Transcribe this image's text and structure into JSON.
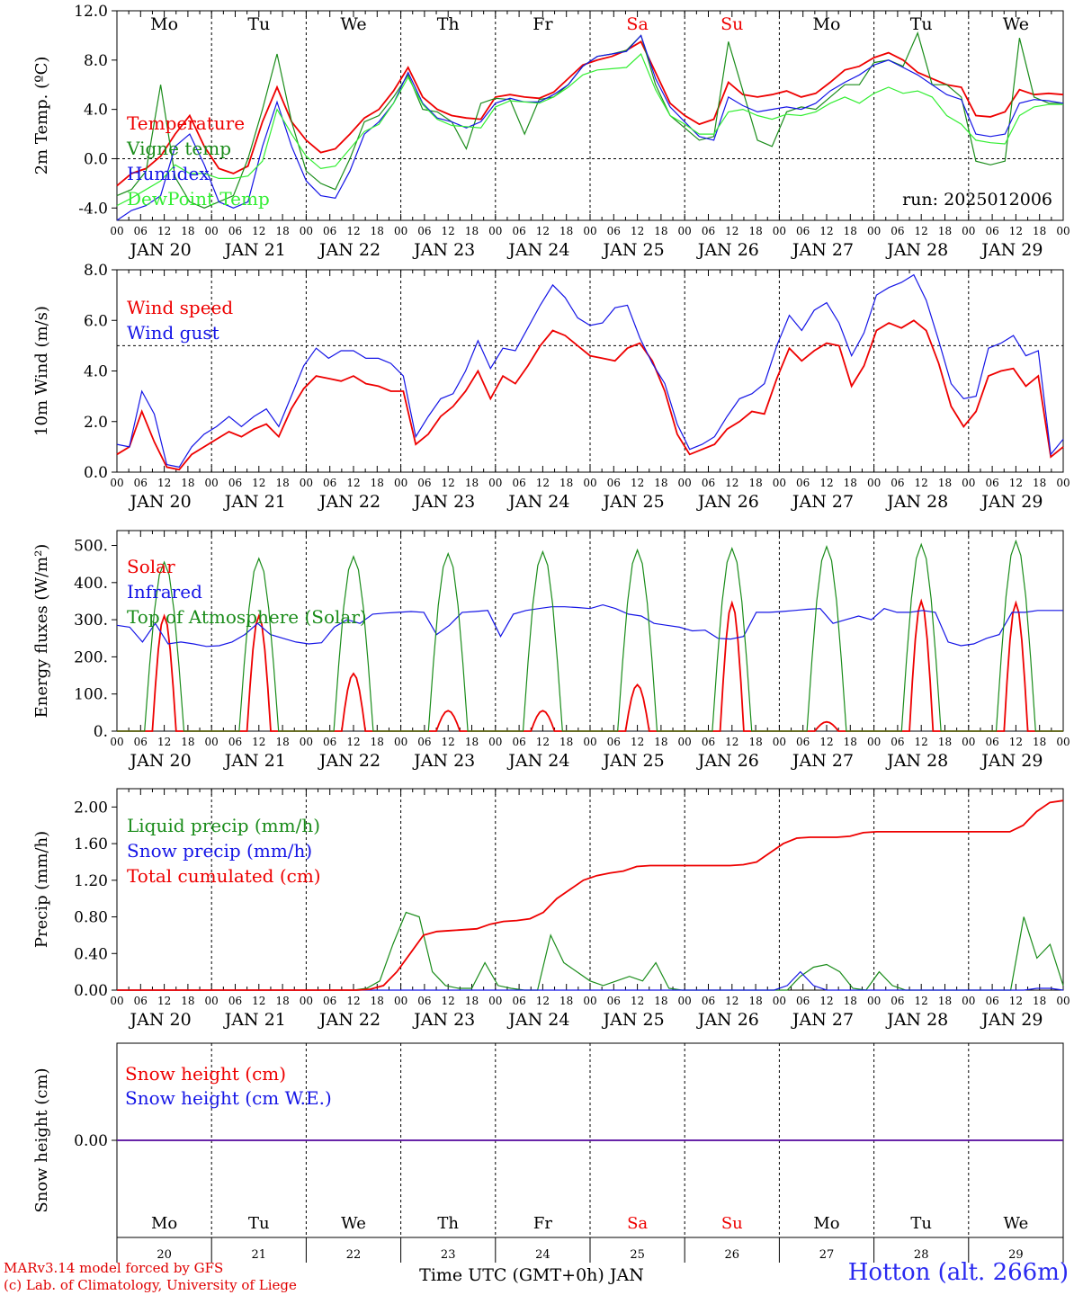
{
  "time_axis": {
    "days": [
      "JAN 20",
      "JAN 21",
      "JAN 22",
      "JAN 23",
      "JAN 24",
      "JAN 25",
      "JAN 26",
      "JAN 27",
      "JAN 28",
      "JAN 29"
    ],
    "hour_labels": [
      "00",
      "06",
      "12",
      "18"
    ],
    "weekdays": [
      "Mo",
      "Tu",
      "We",
      "Th",
      "Fr",
      "Sa",
      "Su",
      "Mo",
      "Tu",
      "We"
    ],
    "weekend_index": [
      5,
      6
    ],
    "day_numbers": [
      "20",
      "21",
      "22",
      "23",
      "24",
      "25",
      "26",
      "27",
      "28",
      "29"
    ],
    "month": "JAN",
    "xlabel": "Time UTC (GMT+0h)"
  },
  "colors": {
    "red": "#ee0000",
    "green": "#1a8c1a",
    "blue": "#1515e6",
    "light_green": "#33ee33",
    "axis": "#000000"
  },
  "footer": {
    "credit_line1": "MARv3.14 model forced by GFS",
    "credit_line2": "(c) Lab. of Climatology, University of Liege",
    "station": "Hotton (alt. 266m)"
  },
  "chart_data": [
    {
      "type": "line",
      "ylabel": "2m Temp. (ºC)",
      "ylim": [
        -5,
        12
      ],
      "yticks": [
        "-4.0",
        "0.0",
        "4.0",
        "8.0",
        "12.0"
      ],
      "ytick_values": [
        -4,
        0,
        4,
        8,
        12
      ],
      "ref_line": 0,
      "annotation": "run: 2025012006",
      "series": [
        {
          "name": "Temperature",
          "color": "red",
          "values": [
            -2.2,
            -1.2,
            -0.8,
            0.2,
            2.0,
            3.5,
            1.0,
            -0.8,
            -1.2,
            -0.6,
            3.0,
            5.8,
            3.0,
            1.5,
            0.5,
            0.8,
            2.0,
            3.3,
            4.0,
            5.5,
            7.4,
            5.0,
            4.0,
            3.5,
            3.3,
            3.2,
            5.0,
            5.2,
            5.0,
            4.9,
            5.4,
            6.5,
            7.6,
            8.0,
            8.3,
            8.8,
            9.5,
            7.0,
            4.5,
            3.5,
            2.8,
            3.2,
            6.2,
            5.2,
            5.0,
            5.2,
            5.5,
            5.0,
            5.3,
            6.2,
            7.2,
            7.5,
            8.2,
            8.6,
            8.0,
            7.0,
            6.5,
            6.0,
            5.8,
            3.5,
            3.4,
            3.8,
            5.6,
            5.2,
            5.3,
            5.2
          ]
        },
        {
          "name": "Vigne temp",
          "color": "green",
          "values": [
            -3.0,
            -2.5,
            -1.0,
            6.0,
            -1.5,
            -3.5,
            -4.0,
            -3.5,
            -3.0,
            0.0,
            4.0,
            8.5,
            3.0,
            -1.0,
            -2.0,
            -2.5,
            0.0,
            3.0,
            3.5,
            5.0,
            6.8,
            4.0,
            3.8,
            3.0,
            0.8,
            4.5,
            4.9,
            4.8,
            2.0,
            4.8,
            5.0,
            6.0,
            7.5,
            8.3,
            8.5,
            8.8,
            10.0,
            6.0,
            3.5,
            2.5,
            1.5,
            1.8,
            9.5,
            5.5,
            1.5,
            1.0,
            3.8,
            4.2,
            4.0,
            5.0,
            6.0,
            6.0,
            7.8,
            8.0,
            7.5,
            10.2,
            6.0,
            6.0,
            5.0,
            -0.2,
            -0.5,
            -0.2,
            9.8,
            5.0,
            4.5,
            4.5
          ]
        },
        {
          "name": "Humidex",
          "color": "blue",
          "values": [
            -5.0,
            -4.2,
            -3.8,
            -3.0,
            1.0,
            2.0,
            -0.5,
            -3.5,
            -4.0,
            -3.5,
            1.0,
            4.6,
            1.0,
            -1.8,
            -3.0,
            -3.2,
            -1.0,
            2.0,
            3.0,
            4.5,
            7.0,
            4.5,
            3.3,
            3.0,
            2.5,
            3.0,
            4.5,
            4.9,
            4.6,
            4.6,
            5.2,
            6.0,
            7.5,
            8.3,
            8.5,
            8.7,
            10.0,
            6.5,
            4.2,
            3.0,
            1.8,
            1.5,
            5.0,
            4.3,
            3.8,
            4.0,
            4.2,
            4.0,
            4.5,
            5.5,
            6.2,
            6.8,
            7.6,
            8.0,
            7.4,
            6.8,
            6.0,
            5.2,
            4.8,
            2.0,
            1.8,
            2.0,
            4.5,
            4.8,
            4.7,
            4.5
          ]
        },
        {
          "name": "DewPoint Temp",
          "color": "light_green",
          "values": [
            -3.8,
            -3.2,
            -2.5,
            -1.8,
            -0.5,
            -1.2,
            -1.2,
            -1.6,
            -1.6,
            -1.4,
            -0.2,
            4.0,
            2.0,
            0.2,
            -0.8,
            -0.6,
            0.8,
            2.2,
            2.8,
            4.5,
            6.6,
            4.4,
            3.2,
            2.7,
            2.6,
            2.5,
            4.2,
            4.7,
            4.6,
            4.5,
            5.0,
            5.8,
            6.8,
            7.2,
            7.3,
            7.4,
            8.5,
            5.6,
            3.5,
            2.8,
            2.0,
            2.0,
            3.8,
            4.0,
            3.5,
            3.2,
            3.6,
            3.5,
            3.8,
            4.5,
            5.0,
            4.5,
            5.3,
            5.8,
            5.3,
            5.5,
            5.0,
            3.5,
            2.8,
            1.5,
            1.3,
            1.2,
            3.5,
            4.2,
            4.4,
            4.4
          ]
        }
      ]
    },
    {
      "type": "line",
      "ylabel": "10m Wind (m/s)",
      "ylim": [
        0,
        8
      ],
      "yticks": [
        "0.0",
        "2.0",
        "4.0",
        "6.0",
        "8.0"
      ],
      "ytick_values": [
        0,
        2,
        4,
        6,
        8
      ],
      "ref_line": 5,
      "series": [
        {
          "name": "Wind speed",
          "color": "red",
          "values": [
            0.7,
            1.0,
            2.4,
            1.2,
            0.2,
            0.1,
            0.7,
            1.0,
            1.3,
            1.6,
            1.4,
            1.7,
            1.9,
            1.4,
            2.5,
            3.3,
            3.8,
            3.7,
            3.6,
            3.8,
            3.5,
            3.4,
            3.2,
            3.2,
            1.1,
            1.5,
            2.2,
            2.6,
            3.2,
            4.0,
            2.9,
            3.8,
            3.5,
            4.2,
            5.0,
            5.6,
            5.4,
            5.0,
            4.6,
            4.5,
            4.4,
            4.9,
            5.1,
            4.4,
            3.2,
            1.5,
            0.7,
            0.9,
            1.1,
            1.7,
            2.0,
            2.4,
            2.3,
            3.7,
            4.9,
            4.4,
            4.8,
            5.1,
            5.0,
            3.4,
            4.2,
            5.6,
            5.9,
            5.7,
            6.0,
            5.6,
            4.3,
            2.6,
            1.8,
            2.4,
            3.8,
            4.0,
            4.1,
            3.4,
            3.8,
            0.6,
            1.0
          ]
        },
        {
          "name": "Wind gust",
          "color": "blue",
          "values": [
            1.1,
            1.0,
            3.2,
            2.3,
            0.3,
            0.2,
            1.0,
            1.5,
            1.8,
            2.2,
            1.8,
            2.2,
            2.5,
            1.8,
            3.0,
            4.2,
            4.9,
            4.5,
            4.8,
            4.8,
            4.5,
            4.5,
            4.3,
            3.8,
            1.4,
            2.2,
            2.9,
            3.1,
            4.0,
            5.2,
            4.1,
            4.9,
            4.8,
            5.7,
            6.6,
            7.4,
            6.9,
            6.1,
            5.8,
            5.9,
            6.5,
            6.6,
            5.3,
            4.3,
            3.5,
            1.9,
            0.9,
            1.1,
            1.4,
            2.2,
            2.9,
            3.1,
            3.5,
            5.0,
            6.2,
            5.6,
            6.4,
            6.7,
            5.9,
            4.6,
            5.5,
            7.0,
            7.3,
            7.5,
            7.8,
            6.8,
            5.2,
            3.5,
            2.9,
            3.0,
            4.9,
            5.1,
            5.4,
            4.6,
            4.8,
            0.7,
            1.3
          ]
        }
      ]
    },
    {
      "type": "line",
      "ylabel": "Energy fluxes (W/m²)",
      "ylim": [
        0,
        540
      ],
      "yticks": [
        "0.",
        "100.",
        "200.",
        "300.",
        "400.",
        "500."
      ],
      "ytick_values": [
        0,
        100,
        200,
        300,
        400,
        500
      ],
      "series": [
        {
          "name": "Solar",
          "color": "red",
          "day_peaks": [
            310,
            310,
            155,
            55,
            55,
            125,
            345,
            25,
            350,
            345
          ],
          "pattern": "diurnal"
        },
        {
          "name": "Infrared",
          "color": "blue",
          "values": [
            285,
            280,
            240,
            290,
            235,
            240,
            235,
            228,
            230,
            240,
            260,
            290,
            260,
            250,
            240,
            235,
            238,
            280,
            300,
            290,
            315,
            318,
            320,
            322,
            320,
            260,
            285,
            320,
            322,
            325,
            255,
            315,
            325,
            330,
            335,
            335,
            333,
            330,
            340,
            330,
            315,
            310,
            290,
            285,
            280,
            270,
            272,
            250,
            248,
            255,
            320,
            320,
            322,
            325,
            328,
            330,
            290,
            300,
            310,
            300,
            330,
            320,
            320,
            325,
            320,
            240,
            230,
            235,
            250,
            260,
            320,
            320,
            325,
            325,
            325
          ]
        },
        {
          "name": "Top of Atmosphere (Solar)",
          "color": "green",
          "day_peaks": [
            455,
            465,
            470,
            478,
            483,
            488,
            492,
            497,
            503,
            512
          ],
          "pattern": "diurnal"
        }
      ]
    },
    {
      "type": "line",
      "ylabel": "Precip (mm/h)",
      "ylim": [
        0,
        2.2
      ],
      "yticks": [
        "0.00",
        "0.40",
        "0.80",
        "1.20",
        "1.60",
        "2.00"
      ],
      "ytick_values": [
        0,
        0.4,
        0.8,
        1.2,
        1.6,
        2.0
      ],
      "series": [
        {
          "name": "Liquid precip (mm/h)",
          "color": "green",
          "values": [
            0,
            0,
            0,
            0,
            0,
            0,
            0,
            0,
            0,
            0,
            0,
            0,
            0,
            0,
            0,
            0,
            0,
            0,
            0,
            0.02,
            0.1,
            0.5,
            0.85,
            0.8,
            0.2,
            0.05,
            0.02,
            0.02,
            0.3,
            0.05,
            0.02,
            0,
            0,
            0.6,
            0.3,
            0.2,
            0.1,
            0.05,
            0.1,
            0.15,
            0.1,
            0.3,
            0.02,
            0,
            0,
            0,
            0,
            0,
            0,
            0,
            0,
            0,
            0.15,
            0.25,
            0.28,
            0.2,
            0.02,
            0,
            0.2,
            0.05,
            0,
            0,
            0,
            0,
            0,
            0,
            0,
            0,
            0,
            0.8,
            0.35,
            0.5,
            0.05
          ]
        },
        {
          "name": "Snow precip (mm/h)",
          "color": "blue",
          "values": [
            0,
            0,
            0,
            0,
            0,
            0,
            0,
            0,
            0,
            0,
            0,
            0,
            0,
            0,
            0,
            0,
            0,
            0,
            0,
            0,
            0,
            0,
            0,
            0,
            0,
            0,
            0,
            0,
            0,
            0,
            0,
            0,
            0,
            0,
            0,
            0,
            0,
            0,
            0,
            0,
            0,
            0,
            0,
            0,
            0,
            0,
            0,
            0,
            0,
            0,
            0,
            0.05,
            0.2,
            0.05,
            0,
            0,
            0,
            0,
            0,
            0,
            0,
            0,
            0,
            0,
            0,
            0,
            0,
            0,
            0,
            0,
            0.02,
            0.02,
            0
          ]
        },
        {
          "name": "Total cumulated (cm)",
          "color": "red",
          "values": [
            0,
            0,
            0,
            0,
            0,
            0,
            0,
            0,
            0,
            0,
            0,
            0,
            0,
            0,
            0,
            0,
            0,
            0,
            0,
            0.01,
            0.05,
            0.2,
            0.4,
            0.6,
            0.64,
            0.65,
            0.66,
            0.67,
            0.72,
            0.75,
            0.76,
            0.78,
            0.85,
            1.0,
            1.1,
            1.2,
            1.25,
            1.28,
            1.3,
            1.35,
            1.36,
            1.36,
            1.36,
            1.36,
            1.36,
            1.36,
            1.36,
            1.37,
            1.4,
            1.5,
            1.6,
            1.66,
            1.67,
            1.67,
            1.67,
            1.68,
            1.72,
            1.73,
            1.73,
            1.73,
            1.73,
            1.73,
            1.73,
            1.73,
            1.73,
            1.73,
            1.73,
            1.73,
            1.8,
            1.95,
            2.05,
            2.07
          ]
        }
      ]
    },
    {
      "type": "line",
      "ylabel": "Snow height (cm)",
      "ylim": [
        -1,
        1
      ],
      "yticks": [
        "0.00"
      ],
      "ytick_values": [
        0
      ],
      "series": [
        {
          "name": "Snow height (cm)",
          "color": "red",
          "values": [
            0,
            0
          ]
        },
        {
          "name": "Snow height (cm W.E.)",
          "color": "blue",
          "values": [
            0,
            0
          ]
        }
      ]
    }
  ]
}
